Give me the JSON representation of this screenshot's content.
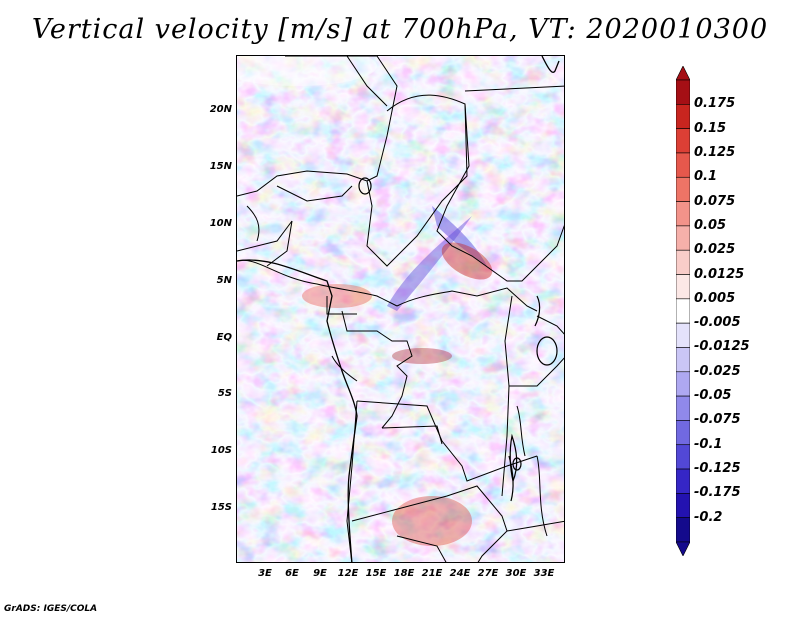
{
  "title": "Vertical velocity [m/s] at 700hPa, VT: 2020010300",
  "credit": "GrADS: IGES/COLA",
  "lat_labels": [
    "20N",
    "15N",
    "10N",
    "5N",
    "EQ",
    "5S",
    "10S",
    "15S"
  ],
  "lon_labels": [
    "3E",
    "6E",
    "9E",
    "12E",
    "15E",
    "18E",
    "21E",
    "24E",
    "27E",
    "30E",
    "33E"
  ],
  "colorbar": {
    "labels": [
      "0.175",
      "0.15",
      "0.125",
      "0.1",
      "0.075",
      "0.05",
      "0.025",
      "0.0125",
      "0.005",
      "-0.005",
      "-0.0125",
      "-0.025",
      "-0.05",
      "-0.075",
      "-0.1",
      "-0.125",
      "-0.175",
      "-0.2"
    ],
    "colors": [
      "#a50f15",
      "#c8251f",
      "#dc3f35",
      "#e6584c",
      "#ee7466",
      "#f3938a",
      "#f6b0aa",
      "#f9cdc9",
      "#fce8e6",
      "#ffffff",
      "#e4e2fb",
      "#cac6f6",
      "#aea8f1",
      "#9089ea",
      "#7169e1",
      "#5248d6",
      "#3526c6",
      "#2312b0",
      "#140a8c"
    ],
    "top_arrow_color": "#a50f15",
    "bottom_arrow_color": "#140a8c"
  }
}
